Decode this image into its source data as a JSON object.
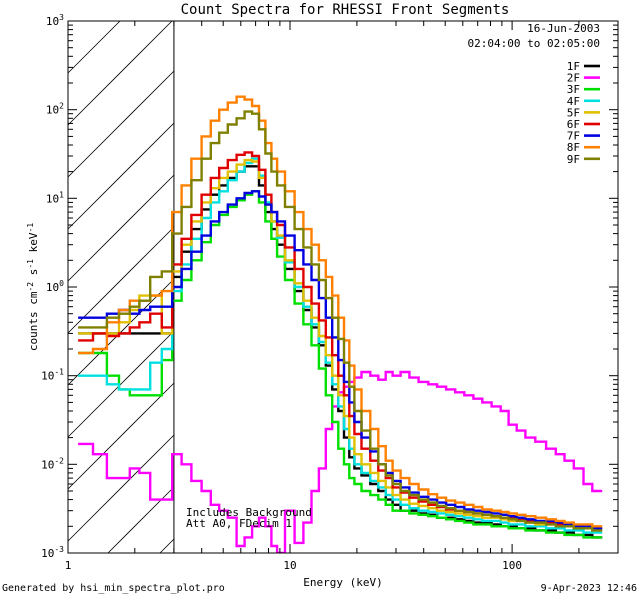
{
  "chart_data": {
    "type": "line",
    "title": "Count Spectra for RHESSI Front Segments",
    "xlabel": "Energy (keV)",
    "ylabel": "counts cm",
    "ylabel_sup1": "-2",
    "ylabel_mid": " s",
    "ylabel_sup2": "-1",
    "ylabel_end": " keV",
    "ylabel_sup3": "-1",
    "x_scale": "log",
    "y_scale": "log",
    "xlim": [
      1,
      300
    ],
    "ylim": [
      0.001,
      1000
    ],
    "x_ticks": [
      {
        "value": 1,
        "label": "1"
      },
      {
        "value": 10,
        "label": "10"
      },
      {
        "value": 100,
        "label": "100"
      }
    ],
    "y_ticks": [
      {
        "value": 0.001,
        "mant": "10",
        "exp": "-3"
      },
      {
        "value": 0.01,
        "mant": "10",
        "exp": "-2"
      },
      {
        "value": 0.1,
        "mant": "10",
        "exp": "-1"
      },
      {
        "value": 1,
        "mant": "10",
        "exp": "0"
      },
      {
        "value": 10,
        "mant": "10",
        "exp": "1"
      },
      {
        "value": 100,
        "mant": "10",
        "exp": "2"
      },
      {
        "value": 1000,
        "mant": "10",
        "exp": "3"
      }
    ],
    "hatched_region_max_keV": 3,
    "date": "16-Jun-2003",
    "time_range": "02:04:00 to 02:05:00",
    "annotations": [
      "Includes Background",
      "Att A0, FDecim 1"
    ],
    "legend_position": "top-right",
    "energy_bins_keV": [
      1.2,
      1.4,
      1.6,
      1.8,
      2,
      2.2,
      2.5,
      2.8,
      3.1,
      3.4,
      3.8,
      4.2,
      4.6,
      5,
      5.5,
      6,
      6.5,
      7,
      7.5,
      8,
      8.5,
      9,
      10,
      11,
      12,
      13,
      14,
      15,
      16,
      17,
      18,
      19,
      20,
      22,
      24,
      26,
      28,
      30,
      33,
      36,
      40,
      44,
      48,
      53,
      58,
      64,
      70,
      77,
      85,
      93,
      100,
      110,
      120,
      135,
      150,
      165,
      180,
      200,
      220,
      240,
      270,
      300
    ],
    "series": [
      {
        "name": "1F",
        "color": "#000000",
        "values": [
          0.3,
          0.3,
          0.3,
          0.3,
          0.3,
          0.3,
          0.3,
          0.3,
          1.3,
          2.5,
          4.5,
          7.5,
          11,
          14,
          17,
          20,
          23,
          23,
          14,
          7,
          4.5,
          3,
          1.6,
          0.9,
          0.55,
          0.35,
          0.22,
          0.13,
          0.07,
          0.04,
          0.02,
          0.012,
          0.009,
          0.0075,
          0.006,
          0.005,
          0.004,
          0.0035,
          0.003,
          0.003,
          0.0028,
          0.0027,
          0.0025,
          0.0025,
          0.0024,
          0.0023,
          0.0022,
          0.0022,
          0.0021,
          0.002,
          0.002,
          0.0019,
          0.0019,
          0.0018,
          0.0018,
          0.0017,
          0.0017,
          0.0016,
          0.0016,
          0.0015
        ]
      },
      {
        "name": "2F",
        "color": "#ff00ff",
        "values": [
          0.017,
          0.013,
          0.007,
          0.007,
          0.009,
          0.008,
          0.004,
          0.004,
          0.013,
          0.01,
          0.0065,
          0.005,
          0.0035,
          0.003,
          0.0025,
          0.0012,
          0.0015,
          0.002,
          0.0025,
          0.002,
          0.0012,
          0.001,
          0.003,
          0.0013,
          0.0022,
          0.005,
          0.009,
          0.025,
          0.045,
          0.065,
          0.075,
          0.085,
          0.095,
          0.11,
          0.1,
          0.09,
          0.11,
          0.1,
          0.11,
          0.095,
          0.085,
          0.08,
          0.075,
          0.07,
          0.065,
          0.06,
          0.055,
          0.05,
          0.045,
          0.04,
          0.028,
          0.024,
          0.02,
          0.018,
          0.015,
          0.013,
          0.011,
          0.009,
          0.006,
          0.005
        ]
      },
      {
        "name": "3F",
        "color": "#00e000",
        "values": [
          0.18,
          0.18,
          0.1,
          0.07,
          0.06,
          0.06,
          0.06,
          0.15,
          0.7,
          1.2,
          2,
          3.2,
          5,
          6.5,
          8,
          9.5,
          11,
          12,
          9,
          5.5,
          3.5,
          2.2,
          1.2,
          0.65,
          0.38,
          0.22,
          0.12,
          0.06,
          0.03,
          0.015,
          0.01,
          0.007,
          0.006,
          0.005,
          0.0045,
          0.004,
          0.0035,
          0.003,
          0.003,
          0.0028,
          0.0027,
          0.0026,
          0.0025,
          0.0024,
          0.0023,
          0.0022,
          0.0021,
          0.0021,
          0.002,
          0.002,
          0.0019,
          0.0019,
          0.0018,
          0.0018,
          0.0017,
          0.0017,
          0.0016,
          0.0016,
          0.0015,
          0.0015
        ]
      },
      {
        "name": "4F",
        "color": "#00e0e0",
        "values": [
          0.1,
          0.1,
          0.08,
          0.07,
          0.07,
          0.07,
          0.14,
          0.2,
          0.9,
          1.8,
          3.5,
          6,
          9,
          12,
          16,
          20,
          25,
          28,
          18,
          9,
          5.5,
          3.6,
          1.9,
          1,
          0.6,
          0.38,
          0.24,
          0.14,
          0.08,
          0.045,
          0.025,
          0.015,
          0.01,
          0.008,
          0.0065,
          0.0055,
          0.0045,
          0.004,
          0.0035,
          0.0032,
          0.003,
          0.0029,
          0.0028,
          0.0027,
          0.0026,
          0.0025,
          0.0024,
          0.0023,
          0.0023,
          0.0022,
          0.0021,
          0.0021,
          0.002,
          0.002,
          0.0019,
          0.0019,
          0.0018,
          0.0018,
          0.0017,
          0.0017
        ]
      },
      {
        "name": "5F",
        "color": "#e0c000",
        "values": [
          0.3,
          0.3,
          0.3,
          0.4,
          0.55,
          0.8,
          0.8,
          0.3,
          1.5,
          3,
          5.5,
          9,
          13,
          17,
          20,
          24,
          27,
          26,
          17,
          8.5,
          5.5,
          3.8,
          2,
          1.1,
          0.7,
          0.45,
          0.28,
          0.17,
          0.1,
          0.06,
          0.035,
          0.02,
          0.013,
          0.01,
          0.008,
          0.0065,
          0.0055,
          0.0045,
          0.004,
          0.0036,
          0.0034,
          0.0032,
          0.003,
          0.0029,
          0.0028,
          0.0027,
          0.0026,
          0.0025,
          0.0025,
          0.0024,
          0.0023,
          0.0023,
          0.0022,
          0.0021,
          0.0021,
          0.002,
          0.002,
          0.0019,
          0.0019,
          0.0018
        ]
      },
      {
        "name": "6F",
        "color": "#e00000",
        "values": [
          0.25,
          0.3,
          0.28,
          0.3,
          0.35,
          0.4,
          0.5,
          0.35,
          1.8,
          3.5,
          6.5,
          11,
          17,
          22,
          27,
          31,
          33,
          30,
          21,
          11,
          7,
          5,
          2.8,
          1.6,
          1,
          0.65,
          0.42,
          0.27,
          0.17,
          0.1,
          0.06,
          0.035,
          0.022,
          0.015,
          0.011,
          0.0085,
          0.007,
          0.0055,
          0.0048,
          0.0042,
          0.0038,
          0.0035,
          0.0033,
          0.0031,
          0.003,
          0.0029,
          0.0028,
          0.0027,
          0.0026,
          0.0025,
          0.0025,
          0.0024,
          0.0023,
          0.0022,
          0.0022,
          0.0021,
          0.002,
          0.002,
          0.0019,
          0.0019
        ]
      },
      {
        "name": "7F",
        "color": "#0000e0",
        "values": [
          0.45,
          0.45,
          0.5,
          0.55,
          0.5,
          0.55,
          0.6,
          0.6,
          1,
          1.6,
          2.5,
          3.8,
          5.5,
          7,
          8.5,
          10,
          11.5,
          12,
          10.5,
          8.5,
          7,
          5.5,
          3.8,
          2.6,
          1.8,
          1.2,
          0.75,
          0.45,
          0.27,
          0.15,
          0.085,
          0.05,
          0.03,
          0.02,
          0.014,
          0.01,
          0.008,
          0.0065,
          0.0055,
          0.0048,
          0.0043,
          0.004,
          0.0037,
          0.0035,
          0.0033,
          0.0031,
          0.003,
          0.0029,
          0.0028,
          0.0027,
          0.0026,
          0.0025,
          0.0024,
          0.0023,
          0.0023,
          0.0022,
          0.0021,
          0.002,
          0.002,
          0.0019
        ]
      },
      {
        "name": "8F",
        "color": "#ff8000",
        "values": [
          0.18,
          0.2,
          0.4,
          0.55,
          0.7,
          0.7,
          0.8,
          0.9,
          7,
          14,
          28,
          50,
          75,
          100,
          120,
          140,
          130,
          110,
          75,
          42,
          28,
          20,
          12,
          7,
          4.5,
          3,
          2,
          1.3,
          0.8,
          0.45,
          0.25,
          0.13,
          0.07,
          0.04,
          0.025,
          0.016,
          0.011,
          0.0085,
          0.007,
          0.006,
          0.0052,
          0.0046,
          0.0042,
          0.0039,
          0.0037,
          0.0035,
          0.0033,
          0.0031,
          0.003,
          0.0029,
          0.0028,
          0.0027,
          0.0026,
          0.0025,
          0.0024,
          0.0023,
          0.0022,
          0.0021,
          0.0021,
          0.002
        ]
      },
      {
        "name": "9F",
        "color": "#808000",
        "values": [
          0.35,
          0.35,
          0.45,
          0.5,
          0.6,
          0.7,
          1.3,
          1.5,
          4,
          8,
          16,
          28,
          42,
          55,
          68,
          80,
          95,
          90,
          60,
          32,
          20,
          14,
          8,
          4.5,
          2.8,
          1.8,
          1.2,
          0.75,
          0.45,
          0.26,
          0.14,
          0.075,
          0.04,
          0.024,
          0.015,
          0.01,
          0.0075,
          0.006,
          0.005,
          0.0045,
          0.004,
          0.0037,
          0.0034,
          0.0032,
          0.003,
          0.0029,
          0.0028,
          0.0027,
          0.0026,
          0.0025,
          0.0024,
          0.0023,
          0.0022,
          0.0022,
          0.0021,
          0.002,
          0.002,
          0.0019,
          0.0019,
          0.0018
        ]
      }
    ]
  },
  "footer": {
    "left": "Generated by hsi_min_spectra_plot.pro",
    "right": "9-Apr-2023 12:46"
  }
}
